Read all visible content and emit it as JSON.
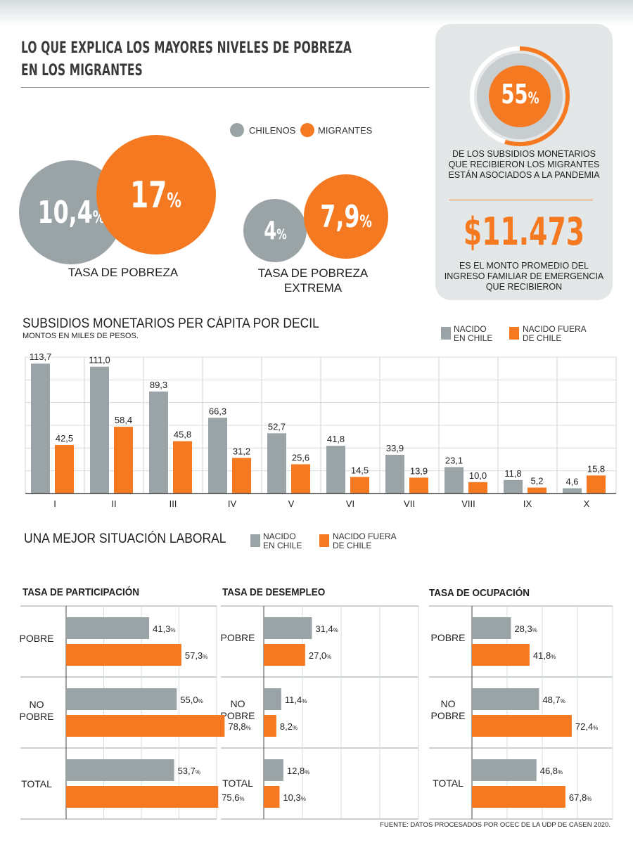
{
  "title_line1": "LO QUE EXPLICA LOS MAYORES NIVELES DE POBREZA",
  "title_line2": "EN LOS MIGRANTES",
  "legend_top": {
    "chilenos": "CHILENOS",
    "migrantes": "MIGRANTES"
  },
  "colors": {
    "gray": "#9aa3a6",
    "orange": "#f47920",
    "panel": "#e4e7e8"
  },
  "pobreza": {
    "chilenos_value": "10,4",
    "migrantes_value": "17",
    "pct": "%",
    "label": "TASA DE POBREZA"
  },
  "pobreza_extrema": {
    "chilenos_value": "4",
    "migrantes_value": "7,9",
    "pct": "%",
    "label_line1": "TASA DE POBREZA",
    "label_line2": "EXTREMA"
  },
  "panel": {
    "donut_value": "55",
    "donut_pct": "%",
    "donut_fraction": 0.55,
    "donut_text_1": "DE LOS SUBSIDIOS MONETARIOS",
    "donut_text_2": "QUE RECIBIERON LOS MIGRANTES",
    "donut_text_3": "ESTÁN ASOCIADOS A LA PANDEMIA",
    "money": "$11.473",
    "money_text_1": "ES EL MONTO PROMEDIO DEL",
    "money_text_2": "INGRESO FAMILIAR DE EMERGENCIA",
    "money_text_3": "QUE RECIBIERON"
  },
  "subsidios": {
    "title": "SUBSIDIOS MONETARIOS PER CÁPITA POR DECIL",
    "subtitle": "MONTOS EN MILES DE PESOS.",
    "legend_gray_1": "NACIDO",
    "legend_gray_2": "EN CHILE",
    "legend_orange_1": "NACIDO FUERA",
    "legend_orange_2": "DE CHILE"
  },
  "laboral": {
    "title": "UNA MEJOR SITUACIÓN LABORAL",
    "legend_gray_1": "NACIDO",
    "legend_gray_2": "EN CHILE",
    "legend_orange_1": "NACIDO FUERA",
    "legend_orange_2": "DE CHILE"
  },
  "row_labels": {
    "pobre": "POBRE",
    "no_pobre_1": "NO",
    "no_pobre_2": "POBRE",
    "total": "TOTAL"
  },
  "source": "FUENTE: DATOS PROCESADOS POR OCEC DE LA UDP DE CASEN 2020.",
  "chart_data": [
    {
      "type": "bar",
      "title": "SUBSIDIOS MONETARIOS PER CÁPITA POR DECIL",
      "categories": [
        "I",
        "II",
        "III",
        "IV",
        "V",
        "VI",
        "VII",
        "VIII",
        "IX",
        "X"
      ],
      "series": [
        {
          "name": "NACIDO EN CHILE",
          "values": [
            113.7,
            111.0,
            89.3,
            66.3,
            52.7,
            41.8,
            33.9,
            23.1,
            11.8,
            4.6
          ],
          "labels": [
            "113,7",
            "111,0",
            "89,3",
            "66,3",
            "52,7",
            "41,8",
            "33,9",
            "23,1",
            "11,8",
            "4,6"
          ]
        },
        {
          "name": "NACIDO FUERA DE CHILE",
          "values": [
            42.5,
            58.4,
            45.8,
            31.2,
            25.6,
            14.5,
            13.9,
            10.0,
            5.2,
            15.8
          ],
          "labels": [
            "42,5",
            "58,4",
            "45,8",
            "31,2",
            "25,6",
            "14,5",
            "13,9",
            "10,0",
            "5,2",
            "15,8"
          ]
        }
      ],
      "ylim": [
        0,
        120
      ],
      "grid": true
    },
    {
      "type": "bar",
      "title": "TASA DE PARTICIPACIÓN",
      "categories": [
        "POBRE",
        "NO POBRE",
        "TOTAL"
      ],
      "series": [
        {
          "name": "NACIDO EN CHILE",
          "values": [
            41.3,
            55.0,
            53.7
          ],
          "labels": [
            "41,3",
            "55,0",
            "53,7"
          ]
        },
        {
          "name": "NACIDO FUERA DE CHILE",
          "values": [
            57.3,
            78.8,
            75.6
          ],
          "labels": [
            "57,3",
            "78,8",
            "75,6"
          ]
        }
      ],
      "xlim": [
        0,
        100
      ]
    },
    {
      "type": "bar",
      "title": "TASA DE DESEMPLEO",
      "categories": [
        "POBRE",
        "NO POBRE",
        "TOTAL"
      ],
      "series": [
        {
          "name": "NACIDO EN CHILE",
          "values": [
            31.4,
            11.4,
            12.8
          ],
          "labels": [
            "31,4",
            "11,4",
            "12,8"
          ]
        },
        {
          "name": "NACIDO FUERA DE CHILE",
          "values": [
            27.0,
            8.2,
            10.3
          ],
          "labels": [
            "27,0",
            "8,2",
            "10,3"
          ]
        }
      ],
      "xlim": [
        0,
        100
      ]
    },
    {
      "type": "bar",
      "title": "TASA DE OCUPACIÓN",
      "categories": [
        "POBRE",
        "NO POBRE",
        "TOTAL"
      ],
      "series": [
        {
          "name": "NACIDO EN CHILE",
          "values": [
            28.3,
            48.7,
            46.8
          ],
          "labels": [
            "28,3",
            "48,7",
            "46,8"
          ]
        },
        {
          "name": "NACIDO FUERA DE CHILE",
          "values": [
            41.8,
            72.4,
            67.8
          ],
          "labels": [
            "41,8",
            "72,4",
            "67,8"
          ]
        }
      ],
      "xlim": [
        0,
        100
      ]
    }
  ]
}
